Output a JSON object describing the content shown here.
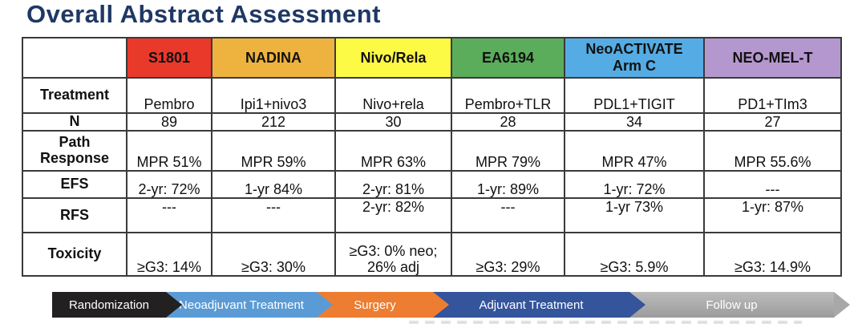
{
  "title": "Overall Abstract Assessment",
  "table": {
    "corner": "",
    "columns": [
      {
        "label": "S1801",
        "color": "#e8392b"
      },
      {
        "label": "NADINA",
        "color": "#eeb33e"
      },
      {
        "label": "Nivo/Rela",
        "color": "#fdfa45"
      },
      {
        "label": "EA6194",
        "color": "#5bad5c"
      },
      {
        "label": "NeoACTIVATE\nArm C",
        "color": "#55ace4"
      },
      {
        "label": "NEO-MEL-T",
        "color": "#b597d0"
      }
    ],
    "rows": [
      {
        "label": "Treatment",
        "values": [
          "Pembro",
          "Ipi1+nivo3",
          "Nivo+rela",
          "Pembro+TLR",
          "PDL1+TIGIT",
          "PD1+TIm3"
        ]
      },
      {
        "label": "N",
        "values": [
          "89",
          "212",
          "30",
          "28",
          "34",
          "27"
        ]
      },
      {
        "label": "Path\nResponse",
        "values": [
          "MPR 51%",
          "MPR 59%",
          "MPR 63%",
          "MPR 79%",
          "MPR 47%",
          "MPR 55.6%"
        ]
      },
      {
        "label": "EFS",
        "values": [
          "2-yr: 72%",
          "1-yr 84%",
          "2-yr: 81%",
          "1-yr: 89%",
          "1-yr: 72%",
          "---"
        ]
      },
      {
        "label": "RFS",
        "values": [
          "---",
          "---",
          "2-yr: 82%",
          "---",
          "1-yr 73%",
          "1-yr: 87%"
        ]
      },
      {
        "label": "Toxicity",
        "values": [
          "≥G3: 14%",
          "≥G3: 30%",
          "≥G3: 0% neo;\n26% adj",
          "≥G3: 29%",
          "≥G3: 5.9%",
          "≥G3: 14.9%"
        ]
      }
    ]
  },
  "flow": {
    "steps": [
      {
        "label": "Randomization",
        "color": "#232021"
      },
      {
        "label": "Neoadjuvant Treatment",
        "color": "#5b9bd5"
      },
      {
        "label": "Surgery",
        "color": "#ed7d31"
      },
      {
        "label": "Adjuvant Treatment",
        "color": "#34549c"
      },
      {
        "label": "Follow up",
        "color": "#a8a8a8"
      }
    ]
  }
}
